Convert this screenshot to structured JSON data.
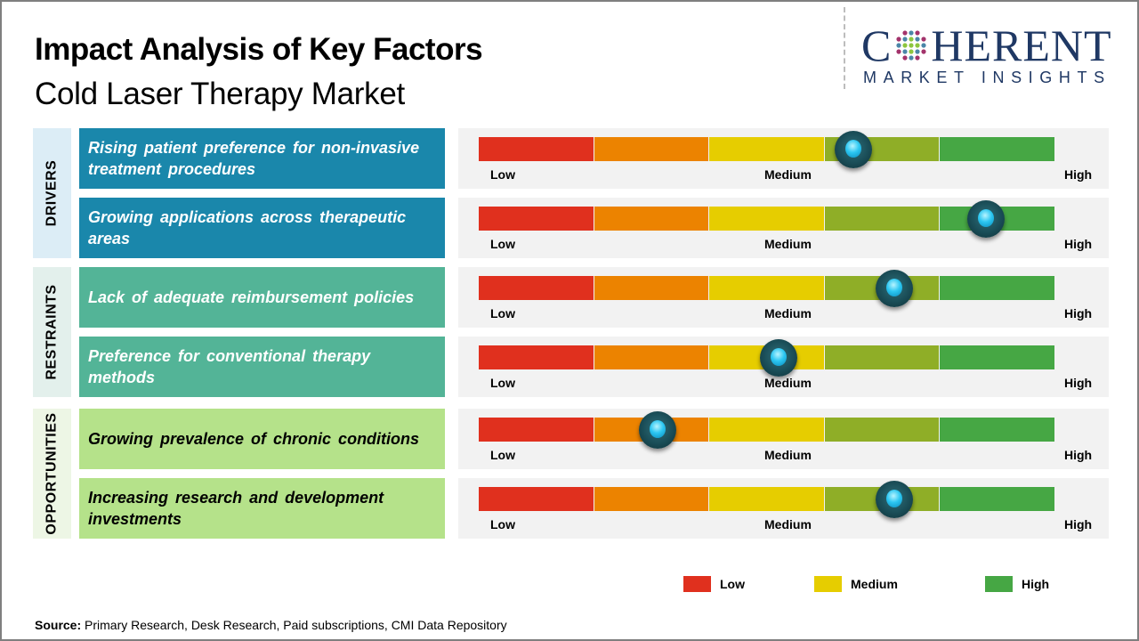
{
  "header": {
    "title": "Impact Analysis of Key Factors",
    "subtitle": "Cold Laser Therapy Market"
  },
  "logo": {
    "word_before": "C",
    "word_after": "HERENT",
    "tagline": "MARKET INSIGHTS",
    "icon": "globe-dots-icon"
  },
  "colors": {
    "drivers_bg": "#1a87ab",
    "drivers_label_bg": "#dcedf6",
    "restraints_bg": "#53b497",
    "restraints_label_bg": "#e3f0ec",
    "opportunities_bg": "#b5e28a",
    "opportunities_label_bg": "#edf6e5",
    "scale": [
      "#e0301e",
      "#ec8300",
      "#e6cd00",
      "#8fae27",
      "#46a744"
    ]
  },
  "scale_labels": {
    "low": "Low",
    "medium": "Medium",
    "high": "High"
  },
  "legend": [
    {
      "label": "Low",
      "color": "#e0301e"
    },
    {
      "label": "Medium",
      "color": "#e6cd00"
    },
    {
      "label": "High",
      "color": "#46a744"
    }
  ],
  "source": {
    "prefix": "Source:",
    "text": "Primary Research, Desk Research, Paid subscriptions, CMI Data Repository"
  },
  "chart_data": {
    "type": "table",
    "title": "Impact Analysis of Key Factors - Cold Laser Therapy Market",
    "scale": [
      "Low",
      "Medium",
      "High"
    ],
    "value_range": [
      0,
      1
    ],
    "categories": [
      {
        "name": "DRIVERS",
        "factors": [
          {
            "label": "Rising patient preference for non-invasive treatment procedures",
            "impact": 0.65
          },
          {
            "label": "Growing applications across therapeutic areas",
            "impact": 0.88
          }
        ]
      },
      {
        "name": "RESTRAINTS",
        "factors": [
          {
            "label": "Lack of adequate reimbursement policies",
            "impact": 0.72
          },
          {
            "label": "Preference for conventional therapy methods",
            "impact": 0.52
          }
        ]
      },
      {
        "name": "OPPORTUNITIES",
        "factors": [
          {
            "label": "Growing prevalence of chronic conditions",
            "impact": 0.31
          },
          {
            "label": "Increasing research and development investments",
            "impact": 0.72
          }
        ]
      }
    ]
  }
}
